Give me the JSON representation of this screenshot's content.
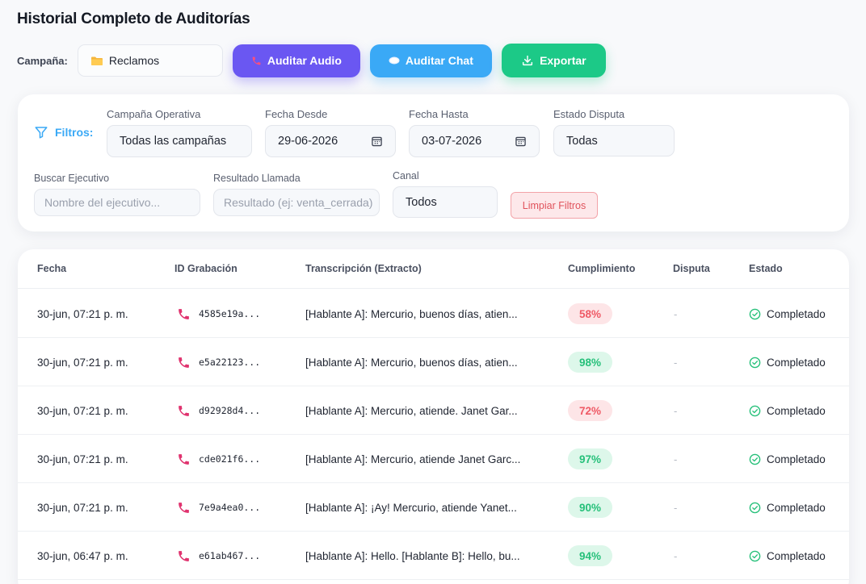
{
  "page_title": "Historial Completo de Auditorías",
  "toolbar": {
    "campaign_label": "Campaña:",
    "campaign_value": "Reclamos",
    "audit_audio_label": "Auditar Audio",
    "audit_chat_label": "Auditar Chat",
    "export_label": "Exportar"
  },
  "filters": {
    "title": "Filtros:",
    "operative_campaign": {
      "label": "Campaña Operativa",
      "value": "Todas las campañas"
    },
    "date_from": {
      "label": "Fecha Desde",
      "value": "29-06-2026"
    },
    "date_to": {
      "label": "Fecha Hasta",
      "value": "03-07-2026"
    },
    "dispute_status": {
      "label": "Estado Disputa",
      "value": "Todas"
    },
    "executive_search": {
      "label": "Buscar Ejecutivo",
      "placeholder": "Nombre del ejecutivo..."
    },
    "call_result": {
      "label": "Resultado Llamada",
      "placeholder": "Resultado (ej: venta_cerrada)"
    },
    "channel": {
      "label": "Canal",
      "value": "Todos"
    },
    "clear_label": "Limpiar Filtros"
  },
  "table": {
    "columns": [
      "Fecha",
      "ID Grabación",
      "Transcripción (Extracto)",
      "Cumplimiento",
      "Disputa",
      "Estado"
    ],
    "rows": [
      {
        "date": "30-jun, 07:21 p. m.",
        "id": "4585e19a...",
        "transcript": "[Hablante A]: Mercurio, buenos días, atien...",
        "compliance": "58%",
        "level": "low",
        "dispute": "-",
        "status": "Completado"
      },
      {
        "date": "30-jun, 07:21 p. m.",
        "id": "e5a22123...",
        "transcript": "[Hablante A]: Mercurio, buenos días, atien...",
        "compliance": "98%",
        "level": "high",
        "dispute": "-",
        "status": "Completado"
      },
      {
        "date": "30-jun, 07:21 p. m.",
        "id": "d92928d4...",
        "transcript": "[Hablante A]: Mercurio, atiende. Janet Gar...",
        "compliance": "72%",
        "level": "low",
        "dispute": "-",
        "status": "Completado"
      },
      {
        "date": "30-jun, 07:21 p. m.",
        "id": "cde021f6...",
        "transcript": "[Hablante A]: Mercurio, atiende Janet Garc...",
        "compliance": "97%",
        "level": "high",
        "dispute": "-",
        "status": "Completado"
      },
      {
        "date": "30-jun, 07:21 p. m.",
        "id": "7e9a4ea0...",
        "transcript": "[Hablante A]: ¡Ay! Mercurio, atiende Yanet...",
        "compliance": "90%",
        "level": "high",
        "dispute": "-",
        "status": "Completado"
      },
      {
        "date": "30-jun, 06:47 p. m.",
        "id": "e61ab467...",
        "transcript": "[Hablante A]: Hello. [Hablante B]: Hello, bu...",
        "compliance": "94%",
        "level": "high",
        "dispute": "-",
        "status": "Completado"
      }
    ]
  },
  "colors": {
    "audio_button": "#6a57f2",
    "chat_button": "#3aa9f6",
    "export_button": "#1cc987",
    "low_compliance": "#ef5a66",
    "high_compliance": "#26c07a",
    "phone_icon": "#e0336f"
  },
  "icons": {
    "campaign": "folder-icon",
    "audit_audio": "phone-icon",
    "audit_chat": "chat-bubble-icon",
    "export": "download-icon",
    "filters": "filter-icon",
    "date": "calendar-icon",
    "row_type": "phone-icon",
    "status": "check-circle-icon"
  }
}
